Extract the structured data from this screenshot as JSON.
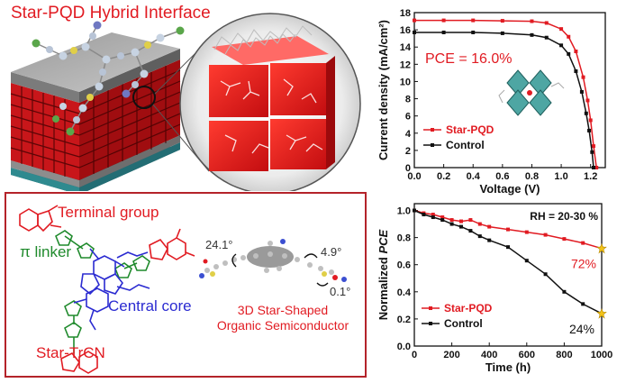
{
  "header": {
    "title": "Star-PQD Hybrid Interface"
  },
  "molecule": {
    "terminal_group": "Terminal group",
    "pi_linker": "π linker",
    "central_core": "Central core",
    "name": "Star-TrCN",
    "semiconductor_line1": "3D Star-Shaped",
    "semiconductor_line2": "Organic Semiconductor",
    "angle_a": "24.1°",
    "angle_b": "4.9°",
    "angle_c": "0.1°"
  },
  "colors": {
    "red": "#e11b22",
    "green": "#1f8a2c",
    "blue": "#2b2bd1",
    "black": "#111111"
  },
  "chart_data": [
    {
      "type": "line",
      "title": "",
      "xlabel": "Voltage (V)",
      "ylabel": "Current density (mA/cm²)",
      "xlim": [
        0.0,
        1.3
      ],
      "ylim": [
        0,
        18
      ],
      "xticks": [
        "0.0",
        "0.2",
        "0.4",
        "0.6",
        "0.8",
        "1.0",
        "1.2"
      ],
      "yticks": [
        "0",
        "2",
        "4",
        "6",
        "8",
        "10",
        "12",
        "14",
        "16",
        "18"
      ],
      "annotation": "PCE = 16.0%",
      "legend": "bottom-left",
      "series": [
        {
          "name": "Star-PQD",
          "color": "#e11b22",
          "x": [
            0.0,
            0.2,
            0.4,
            0.6,
            0.8,
            0.9,
            1.0,
            1.05,
            1.1,
            1.15,
            1.18,
            1.2,
            1.22,
            1.24
          ],
          "y": [
            17.1,
            17.1,
            17.1,
            17.05,
            17.0,
            16.8,
            16.1,
            15.2,
            13.5,
            10.5,
            7.8,
            5.5,
            2.5,
            0.0
          ]
        },
        {
          "name": "Control",
          "color": "#111111",
          "x": [
            0.0,
            0.2,
            0.4,
            0.6,
            0.8,
            0.9,
            1.0,
            1.05,
            1.1,
            1.14,
            1.17,
            1.19,
            1.21,
            1.22
          ],
          "y": [
            15.7,
            15.7,
            15.7,
            15.6,
            15.4,
            15.1,
            14.2,
            13.2,
            11.2,
            8.8,
            6.3,
            4.3,
            1.8,
            0.0
          ]
        }
      ]
    },
    {
      "type": "line",
      "title": "",
      "xlabel": "Time (h)",
      "ylabel_prefix": "Normalized ",
      "ylabel_italic": "PCE",
      "xlim": [
        0,
        1000
      ],
      "ylim": [
        0.0,
        1.05
      ],
      "xticks": [
        "0",
        "200",
        "400",
        "600",
        "800",
        "1000"
      ],
      "yticks": [
        "0.0",
        "0.2",
        "0.4",
        "0.6",
        "0.8",
        "1.0"
      ],
      "annotation": "RH = 20-30 %",
      "legend": "bottom-left",
      "end_labels": [
        "72%",
        "24%"
      ],
      "series": [
        {
          "name": "Star-PQD",
          "color": "#e11b22",
          "x": [
            0,
            50,
            100,
            150,
            200,
            250,
            300,
            350,
            400,
            500,
            600,
            700,
            800,
            900,
            1000
          ],
          "y": [
            1.0,
            0.98,
            0.97,
            0.95,
            0.93,
            0.92,
            0.93,
            0.9,
            0.88,
            0.86,
            0.84,
            0.82,
            0.79,
            0.76,
            0.72
          ]
        },
        {
          "name": "Control",
          "color": "#111111",
          "x": [
            0,
            50,
            100,
            150,
            200,
            250,
            300,
            350,
            400,
            500,
            600,
            700,
            800,
            900,
            1000
          ],
          "y": [
            1.0,
            0.97,
            0.95,
            0.93,
            0.9,
            0.88,
            0.85,
            0.81,
            0.78,
            0.73,
            0.63,
            0.53,
            0.4,
            0.31,
            0.24
          ]
        }
      ]
    }
  ]
}
